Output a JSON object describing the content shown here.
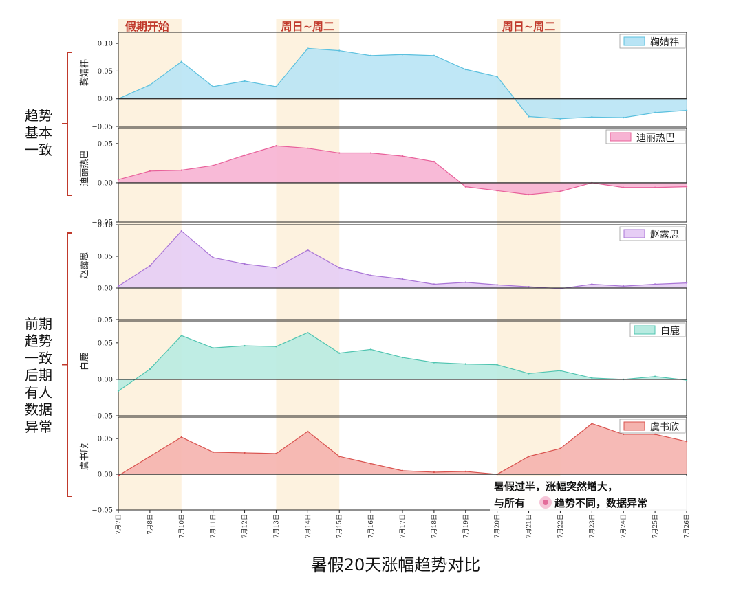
{
  "chart_data": {
    "type": "area",
    "title": "暑假20天涨幅趋势对比",
    "x": [
      "7月7日",
      "7月8日",
      "7月10日",
      "7月11日",
      "7月12日",
      "7月13日",
      "7月14日",
      "7月15日",
      "7月16日",
      "7月17日",
      "7月18日",
      "7月19日",
      "7月20日",
      "7月21日",
      "7月22日",
      "7月23日",
      "7月24日",
      "7月25日",
      "7月26日"
    ],
    "ylim": [
      -0.05,
      0.12
    ],
    "yticks": [
      "0.10",
      "0.05",
      "0.00",
      "−0.05"
    ],
    "grid": false,
    "legend_placement": "top-right",
    "series": [
      {
        "name": "鞠婧祎",
        "color": "#5bc0de",
        "fill": "#b8e4f5",
        "ylim": [
          -0.05,
          0.12
        ],
        "values": [
          0.0,
          0.025,
          0.067,
          0.022,
          0.032,
          0.022,
          0.091,
          0.087,
          0.078,
          0.08,
          0.078,
          0.053,
          0.04,
          -0.032,
          -0.036,
          -0.033,
          -0.034,
          -0.025,
          -0.021
        ]
      },
      {
        "name": "迪丽热巴",
        "color": "#e8609a",
        "fill": "#f7b3d3",
        "ylim": [
          -0.05,
          0.07
        ],
        "values": [
          0.004,
          0.015,
          0.016,
          0.022,
          0.035,
          0.047,
          0.044,
          0.038,
          0.038,
          0.034,
          0.027,
          -0.005,
          -0.01,
          -0.015,
          -0.011,
          0.0,
          -0.006,
          -0.006,
          -0.005
        ]
      },
      {
        "name": "赵露思",
        "color": "#a975d6",
        "fill": "#e6cdf5",
        "ylim": [
          -0.05,
          0.1
        ],
        "values": [
          0.003,
          0.035,
          0.09,
          0.048,
          0.038,
          0.032,
          0.06,
          0.032,
          0.02,
          0.014,
          0.006,
          0.009,
          0.005,
          0.002,
          -0.001,
          0.006,
          0.003,
          0.006,
          0.008
        ]
      },
      {
        "name": "白鹿",
        "color": "#4fc4b0",
        "fill": "#b8ebe1",
        "ylim": [
          -0.05,
          0.08
        ],
        "values": [
          -0.016,
          0.014,
          0.06,
          0.043,
          0.046,
          0.045,
          0.064,
          0.036,
          0.041,
          0.03,
          0.023,
          0.021,
          0.02,
          0.008,
          0.012,
          0.002,
          0.0,
          0.004,
          -0.001
        ]
      },
      {
        "name": "虞书欣",
        "color": "#d9534f",
        "fill": "#f5b3ae",
        "ylim": [
          -0.05,
          0.08
        ],
        "values": [
          -0.002,
          0.025,
          0.052,
          0.031,
          0.03,
          0.029,
          0.06,
          0.025,
          0.015,
          0.005,
          0.003,
          0.004,
          0.0,
          0.025,
          0.036,
          0.071,
          0.056,
          0.056,
          0.046
        ]
      }
    ],
    "highlight_periods": [
      {
        "label": "假期开始",
        "from": "7月7日",
        "to": "7月10日"
      },
      {
        "label": "周日~周二",
        "from": "7月13日",
        "to": "7月15日"
      },
      {
        "label": "周日~周二",
        "from": "7月20日",
        "to": "7月22日"
      }
    ],
    "group_notes": [
      {
        "text": [
          "趋势",
          "基本",
          "一致"
        ]
      },
      {
        "text": [
          "前期",
          "趋势",
          "一致",
          "后期",
          "有人",
          "数据",
          "异常"
        ]
      }
    ],
    "annotation": {
      "line1": "暑假过半，涨幅突然增大，",
      "line2a": "与所有",
      "line2b": "趋势不同，数据异常"
    }
  },
  "colors": {
    "highlight_band": "#fdf0d9",
    "bracket": "#c0392b",
    "axis": "#222222"
  }
}
